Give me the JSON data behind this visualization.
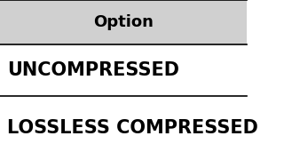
{
  "header_text": "Option",
  "rows": [
    "UNCOMPRESSED",
    "LOSSLESS COMPRESSED"
  ],
  "header_bg": "#d0d0d0",
  "row_bg": "#ffffff",
  "text_color": "#000000",
  "header_text_color": "#000000",
  "line_color": "#000000",
  "header_fontsize": 13,
  "row_fontsize": 15,
  "fig_width": 3.2,
  "fig_height": 1.8,
  "dpi": 100
}
